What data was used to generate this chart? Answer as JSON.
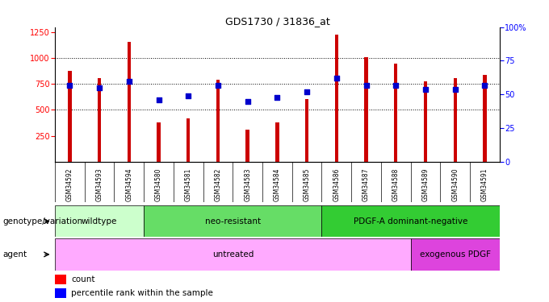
{
  "title": "GDS1730 / 31836_at",
  "samples": [
    "GSM34592",
    "GSM34593",
    "GSM34594",
    "GSM34580",
    "GSM34581",
    "GSM34582",
    "GSM34583",
    "GSM34584",
    "GSM34585",
    "GSM34586",
    "GSM34587",
    "GSM34588",
    "GSM34589",
    "GSM34590",
    "GSM34591"
  ],
  "counts": [
    880,
    810,
    1160,
    375,
    415,
    790,
    305,
    375,
    605,
    1230,
    1010,
    950,
    775,
    810,
    840
  ],
  "percentile_ranks": [
    57,
    55,
    60,
    46,
    49,
    57,
    45,
    48,
    52,
    62,
    57,
    57,
    54,
    54,
    57
  ],
  "ylim_left": [
    0,
    1300
  ],
  "ylim_right": [
    0,
    100
  ],
  "yticks_left": [
    250,
    500,
    750,
    1000,
    1250
  ],
  "yticks_right": [
    0,
    25,
    50,
    75,
    100
  ],
  "bar_color": "#cc0000",
  "dot_color": "#0000cc",
  "genotype_groups": [
    {
      "label": "wildtype",
      "start": 0,
      "end": 3,
      "color": "#ccffcc"
    },
    {
      "label": "neo-resistant",
      "start": 3,
      "end": 9,
      "color": "#66dd66"
    },
    {
      "label": "PDGF-A dominant-negative",
      "start": 9,
      "end": 15,
      "color": "#33cc33"
    }
  ],
  "agent_groups": [
    {
      "label": "untreated",
      "start": 0,
      "end": 12,
      "color": "#ffaaff"
    },
    {
      "label": "exogenous PDGF",
      "start": 12,
      "end": 15,
      "color": "#dd44dd"
    }
  ],
  "genotype_label": "genotype/variation",
  "agent_label": "agent",
  "legend_count_label": "count",
  "legend_pct_label": "percentile rank within the sample",
  "bar_base": 0,
  "bar_width": 0.12
}
